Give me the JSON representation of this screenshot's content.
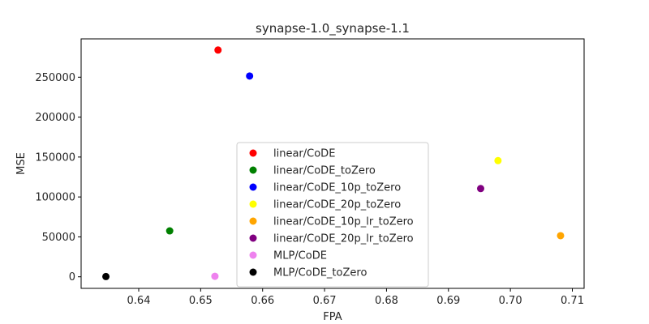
{
  "chart_data": {
    "type": "scatter",
    "title": "synapse-1.0_synapse-1.1",
    "xlabel": "FPA",
    "ylabel": "MSE",
    "xlim": [
      0.6307,
      0.7119
    ],
    "ylim": [
      -14500,
      298000
    ],
    "x_ticks": [
      0.64,
      0.65,
      0.66,
      0.67,
      0.68,
      0.69,
      0.7,
      0.71
    ],
    "x_tick_labels": [
      "0.64",
      "0.65",
      "0.66",
      "0.67",
      "0.68",
      "0.69",
      "0.70",
      "0.71"
    ],
    "y_ticks": [
      0,
      50000,
      100000,
      150000,
      200000,
      250000
    ],
    "y_tick_labels": [
      "0",
      "50000",
      "100000",
      "150000",
      "200000",
      "250000"
    ],
    "grid": false,
    "legend_position": "lower-center",
    "series": [
      {
        "name": "linear/CoDE",
        "color": "#ff0000",
        "x": [
          0.6528
        ],
        "y": [
          284000
        ]
      },
      {
        "name": "linear/CoDE_toZero",
        "color": "#008000",
        "x": [
          0.645
        ],
        "y": [
          57500
        ]
      },
      {
        "name": "linear/CoDE_10p_toZero",
        "color": "#0000ff",
        "x": [
          0.6579
        ],
        "y": [
          251500
        ]
      },
      {
        "name": "linear/CoDE_20p_toZero",
        "color": "#ffff00",
        "x": [
          0.698
        ],
        "y": [
          145500
        ]
      },
      {
        "name": "linear/CoDE_10p_lr_toZero",
        "color": "#ffa500",
        "x": [
          0.7081
        ],
        "y": [
          51500
        ]
      },
      {
        "name": "linear/CoDE_20p_lr_toZero",
        "color": "#800080",
        "x": [
          0.6952
        ],
        "y": [
          110500
        ]
      },
      {
        "name": "MLP/CoDE",
        "color": "#ee82ee",
        "x": [
          0.6523
        ],
        "y": [
          600
        ]
      },
      {
        "name": "MLP/CoDE_toZero",
        "color": "#000000",
        "x": [
          0.6347
        ],
        "y": [
          300
        ]
      }
    ]
  }
}
